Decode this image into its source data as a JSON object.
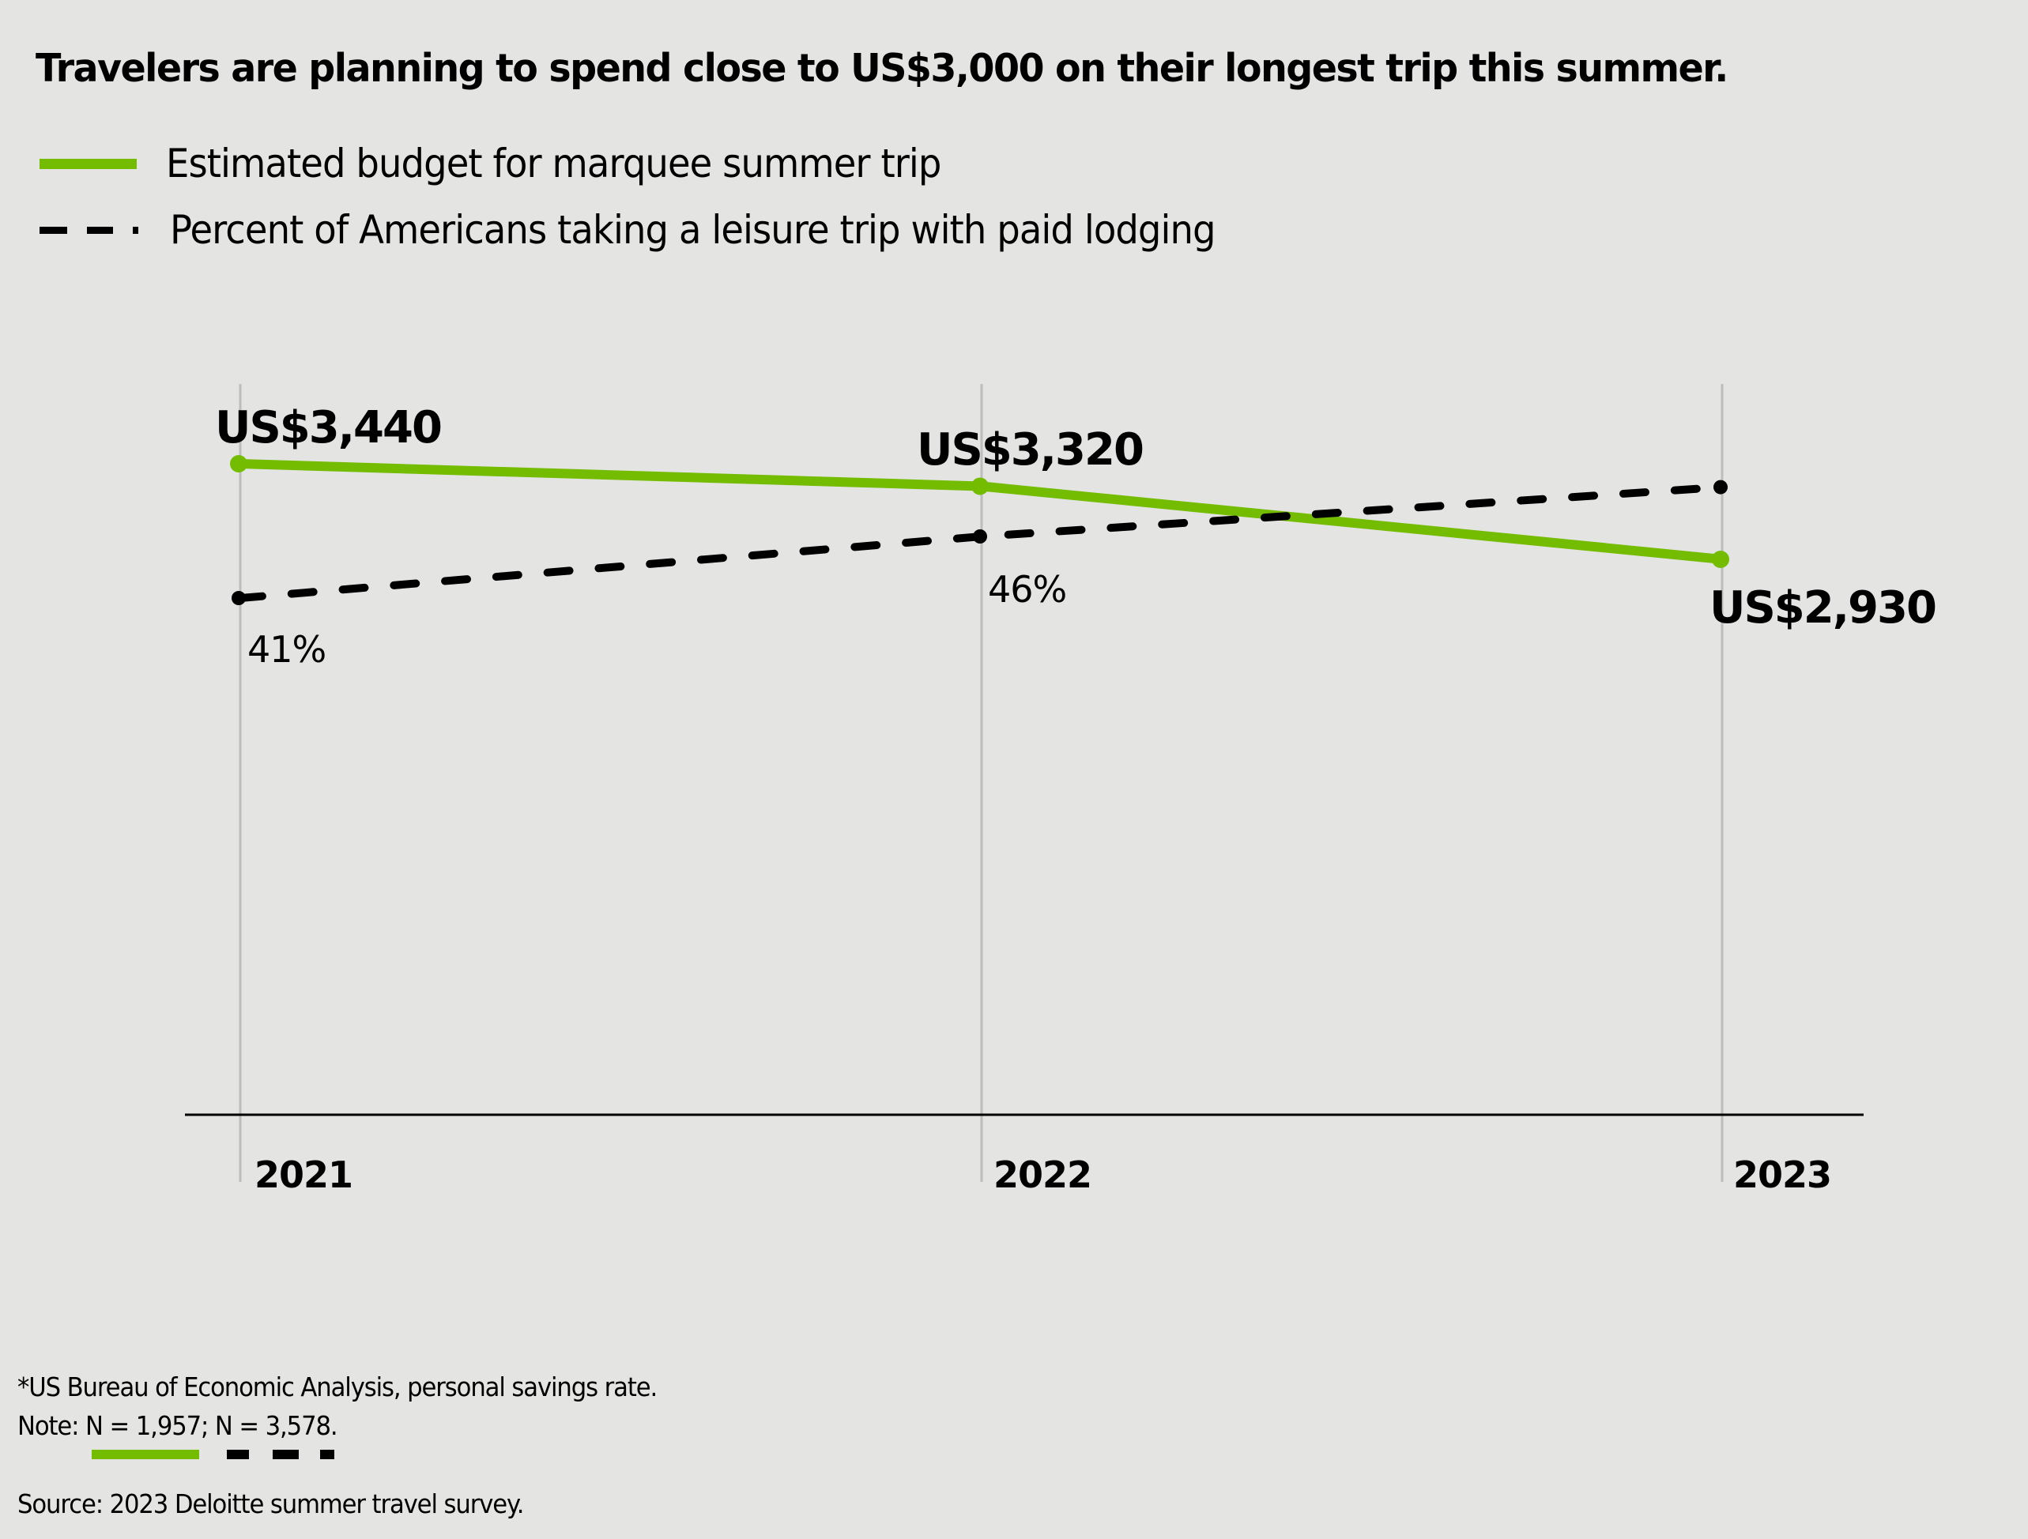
{
  "title": "Travelers are planning to spend close to US$3,000 on their longest trip this summer.",
  "legend": [
    {
      "label": "Estimated budget for marquee summer trip",
      "style": "solid",
      "color": "#74bc00"
    },
    {
      "label": "Percent of Americans taking a leisure trip with paid lodging",
      "style": "dashed",
      "color": "#000000"
    }
  ],
  "colors": {
    "background": "#e4e4e2",
    "budget": "#74bc00",
    "percent": "#000000",
    "gridline": "#bdbdbd",
    "axis": "#000000"
  },
  "chart_data": {
    "type": "line",
    "title": "Travelers are planning to spend close to US$3,000 on their longest trip this summer.",
    "xlabel": "",
    "ylabel": "",
    "categories": [
      "2021",
      "2022",
      "2023"
    ],
    "grid": "vertical lines at each year",
    "legend_position": "top-left",
    "series": [
      {
        "name": "Estimated budget for marquee summer trip",
        "unit": "US$",
        "values": [
          3440,
          3320,
          2930
        ],
        "labels": [
          "US$3,440",
          "US$3,320",
          "US$2,930"
        ],
        "style": "solid"
      },
      {
        "name": "Percent of Americans taking a leisure trip with paid lodging",
        "unit": "%",
        "values": [
          41,
          46,
          50
        ],
        "labels": [
          "41%",
          "46%",
          ""
        ],
        "style": "dashed",
        "note": "2023 value unlabeled; estimated from line position"
      }
    ]
  },
  "footer": {
    "footnote": "*US Bureau of Economic Analysis, personal savings rate.",
    "note": "Note: N = 1,957;    N = 3,578.",
    "source": "Source: 2023 Deloitte summer travel survey."
  }
}
